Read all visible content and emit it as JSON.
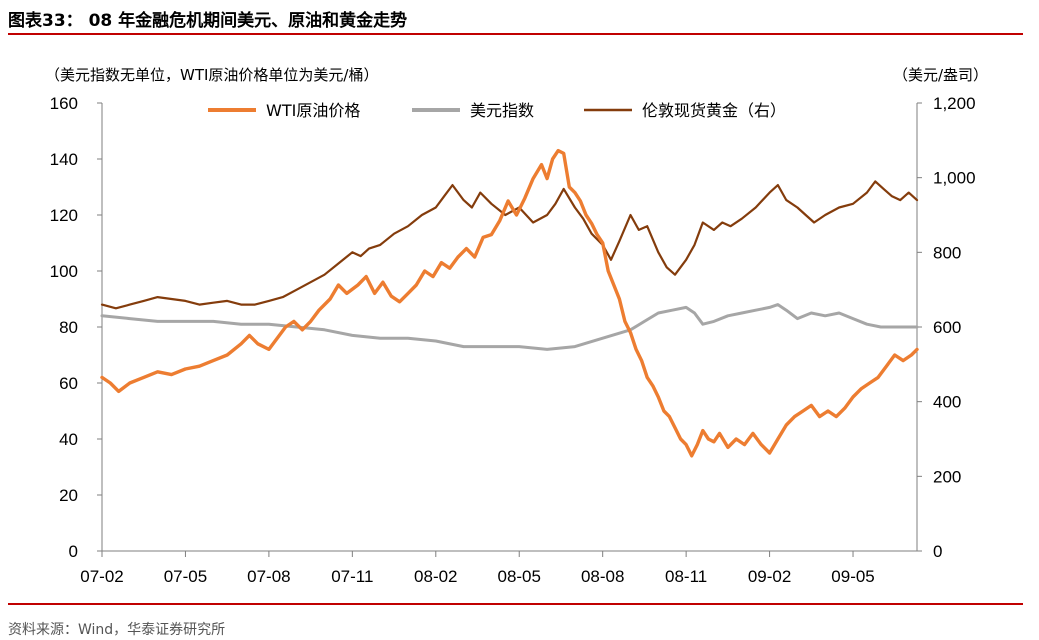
{
  "header": {
    "title": "图表33：  08 年金融危机期间美元、原油和黄金走势"
  },
  "footer": {
    "source": "资料来源：Wind，华泰证券研究所"
  },
  "chart_data": {
    "type": "line",
    "ylabel": "（美元指数无单位，WTI原油价格单位为美元/桶）",
    "y2label": "（美元/盎司）",
    "xlabel": "",
    "ylim": [
      0,
      160
    ],
    "y2lim": [
      0,
      1200
    ],
    "yticks": [
      "0",
      "20",
      "40",
      "60",
      "80",
      "100",
      "120",
      "140",
      "160"
    ],
    "y2ticks": [
      "0",
      "200",
      "400",
      "600",
      "800",
      "1,000",
      "1,200"
    ],
    "x_tick_labels": [
      "07-02",
      "07-05",
      "07-08",
      "07-11",
      "08-02",
      "08-05",
      "08-08",
      "08-11",
      "09-02",
      "09-05"
    ],
    "x_ticks_month_index": [
      1,
      4,
      7,
      10,
      13,
      16,
      19,
      22,
      25,
      28
    ],
    "x_range_month_index": [
      1,
      30.3
    ],
    "legend": {
      "position": "top",
      "entries": [
        "WTI原油价格",
        "美元指数",
        "伦敦现货黄金（右）"
      ]
    },
    "grid": false,
    "series": [
      {
        "name": "WTI原油价格",
        "axis": "left",
        "color": "#ed7d31",
        "points": [
          [
            1.0,
            62
          ],
          [
            1.3,
            60
          ],
          [
            1.6,
            57
          ],
          [
            2.0,
            60
          ],
          [
            2.5,
            62
          ],
          [
            3.0,
            64
          ],
          [
            3.5,
            63
          ],
          [
            4.0,
            65
          ],
          [
            4.5,
            66
          ],
          [
            5.0,
            68
          ],
          [
            5.5,
            70
          ],
          [
            6.0,
            74
          ],
          [
            6.3,
            77
          ],
          [
            6.6,
            74
          ],
          [
            7.0,
            72
          ],
          [
            7.3,
            76
          ],
          [
            7.6,
            80
          ],
          [
            7.9,
            82
          ],
          [
            8.2,
            79
          ],
          [
            8.5,
            82
          ],
          [
            8.8,
            86
          ],
          [
            9.2,
            90
          ],
          [
            9.5,
            95
          ],
          [
            9.8,
            92
          ],
          [
            10.2,
            95
          ],
          [
            10.5,
            98
          ],
          [
            10.8,
            92
          ],
          [
            11.1,
            96
          ],
          [
            11.4,
            91
          ],
          [
            11.7,
            89
          ],
          [
            12.0,
            92
          ],
          [
            12.3,
            95
          ],
          [
            12.6,
            100
          ],
          [
            12.9,
            98
          ],
          [
            13.2,
            103
          ],
          [
            13.5,
            101
          ],
          [
            13.8,
            105
          ],
          [
            14.1,
            108
          ],
          [
            14.4,
            105
          ],
          [
            14.7,
            112
          ],
          [
            15.0,
            113
          ],
          [
            15.3,
            118
          ],
          [
            15.6,
            125
          ],
          [
            15.9,
            120
          ],
          [
            16.2,
            126
          ],
          [
            16.5,
            133
          ],
          [
            16.8,
            138
          ],
          [
            17.0,
            133
          ],
          [
            17.2,
            140
          ],
          [
            17.4,
            143
          ],
          [
            17.6,
            142
          ],
          [
            17.8,
            130
          ],
          [
            18.0,
            128
          ],
          [
            18.2,
            125
          ],
          [
            18.4,
            120
          ],
          [
            18.6,
            117
          ],
          [
            18.8,
            113
          ],
          [
            19.0,
            110
          ],
          [
            19.2,
            100
          ],
          [
            19.4,
            95
          ],
          [
            19.6,
            90
          ],
          [
            19.8,
            82
          ],
          [
            20.0,
            78
          ],
          [
            20.2,
            72
          ],
          [
            20.4,
            68
          ],
          [
            20.6,
            62
          ],
          [
            20.8,
            59
          ],
          [
            21.0,
            55
          ],
          [
            21.2,
            50
          ],
          [
            21.4,
            48
          ],
          [
            21.6,
            44
          ],
          [
            21.8,
            40
          ],
          [
            22.0,
            38
          ],
          [
            22.2,
            34
          ],
          [
            22.4,
            38
          ],
          [
            22.6,
            43
          ],
          [
            22.8,
            40
          ],
          [
            23.0,
            39
          ],
          [
            23.2,
            42
          ],
          [
            23.5,
            37
          ],
          [
            23.8,
            40
          ],
          [
            24.1,
            38
          ],
          [
            24.4,
            42
          ],
          [
            24.7,
            38
          ],
          [
            25.0,
            35
          ],
          [
            25.3,
            40
          ],
          [
            25.6,
            45
          ],
          [
            25.9,
            48
          ],
          [
            26.2,
            50
          ],
          [
            26.5,
            52
          ],
          [
            26.8,
            48
          ],
          [
            27.1,
            50
          ],
          [
            27.4,
            48
          ],
          [
            27.7,
            51
          ],
          [
            28.0,
            55
          ],
          [
            28.3,
            58
          ],
          [
            28.6,
            60
          ],
          [
            28.9,
            62
          ],
          [
            29.2,
            66
          ],
          [
            29.5,
            70
          ],
          [
            29.8,
            68
          ],
          [
            30.1,
            70
          ],
          [
            30.3,
            72
          ]
        ]
      },
      {
        "name": "美元指数",
        "axis": "left",
        "color": "#a6a6a6",
        "points": [
          [
            1.0,
            84
          ],
          [
            2.0,
            83
          ],
          [
            3.0,
            82
          ],
          [
            4.0,
            82
          ],
          [
            5.0,
            82
          ],
          [
            6.0,
            81
          ],
          [
            7.0,
            81
          ],
          [
            8.0,
            80
          ],
          [
            9.0,
            79
          ],
          [
            10.0,
            77
          ],
          [
            11.0,
            76
          ],
          [
            12.0,
            76
          ],
          [
            13.0,
            75
          ],
          [
            14.0,
            73
          ],
          [
            15.0,
            73
          ],
          [
            16.0,
            73
          ],
          [
            17.0,
            72
          ],
          [
            18.0,
            73
          ],
          [
            19.0,
            76
          ],
          [
            20.0,
            79
          ],
          [
            20.5,
            82
          ],
          [
            21.0,
            85
          ],
          [
            21.5,
            86
          ],
          [
            22.0,
            87
          ],
          [
            22.3,
            85
          ],
          [
            22.6,
            81
          ],
          [
            23.0,
            82
          ],
          [
            23.5,
            84
          ],
          [
            24.0,
            85
          ],
          [
            24.5,
            86
          ],
          [
            25.0,
            87
          ],
          [
            25.3,
            88
          ],
          [
            25.6,
            86
          ],
          [
            26.0,
            83
          ],
          [
            26.5,
            85
          ],
          [
            27.0,
            84
          ],
          [
            27.5,
            85
          ],
          [
            28.0,
            83
          ],
          [
            28.5,
            81
          ],
          [
            29.0,
            80
          ],
          [
            29.5,
            80
          ],
          [
            30.0,
            80
          ],
          [
            30.3,
            80
          ]
        ]
      },
      {
        "name": "伦敦现货黄金（右）",
        "axis": "right",
        "color": "#843c0c",
        "points": [
          [
            1.0,
            660
          ],
          [
            1.5,
            650
          ],
          [
            2.0,
            660
          ],
          [
            2.5,
            670
          ],
          [
            3.0,
            680
          ],
          [
            3.5,
            675
          ],
          [
            4.0,
            670
          ],
          [
            4.5,
            660
          ],
          [
            5.0,
            665
          ],
          [
            5.5,
            670
          ],
          [
            6.0,
            660
          ],
          [
            6.5,
            660
          ],
          [
            7.0,
            670
          ],
          [
            7.5,
            680
          ],
          [
            8.0,
            700
          ],
          [
            8.5,
            720
          ],
          [
            9.0,
            740
          ],
          [
            9.5,
            770
          ],
          [
            10.0,
            800
          ],
          [
            10.3,
            790
          ],
          [
            10.6,
            810
          ],
          [
            11.0,
            820
          ],
          [
            11.5,
            850
          ],
          [
            12.0,
            870
          ],
          [
            12.5,
            900
          ],
          [
            13.0,
            920
          ],
          [
            13.3,
            950
          ],
          [
            13.6,
            980
          ],
          [
            14.0,
            940
          ],
          [
            14.3,
            920
          ],
          [
            14.6,
            960
          ],
          [
            15.0,
            930
          ],
          [
            15.5,
            900
          ],
          [
            16.0,
            920
          ],
          [
            16.5,
            880
          ],
          [
            17.0,
            900
          ],
          [
            17.3,
            930
          ],
          [
            17.6,
            970
          ],
          [
            18.0,
            920
          ],
          [
            18.3,
            890
          ],
          [
            18.6,
            850
          ],
          [
            19.0,
            820
          ],
          [
            19.3,
            780
          ],
          [
            19.6,
            830
          ],
          [
            20.0,
            900
          ],
          [
            20.3,
            860
          ],
          [
            20.6,
            870
          ],
          [
            21.0,
            800
          ],
          [
            21.3,
            760
          ],
          [
            21.6,
            740
          ],
          [
            22.0,
            780
          ],
          [
            22.3,
            820
          ],
          [
            22.6,
            880
          ],
          [
            23.0,
            860
          ],
          [
            23.3,
            880
          ],
          [
            23.6,
            870
          ],
          [
            24.0,
            890
          ],
          [
            24.5,
            920
          ],
          [
            25.0,
            960
          ],
          [
            25.3,
            980
          ],
          [
            25.6,
            940
          ],
          [
            26.0,
            920
          ],
          [
            26.3,
            900
          ],
          [
            26.6,
            880
          ],
          [
            27.0,
            900
          ],
          [
            27.5,
            920
          ],
          [
            28.0,
            930
          ],
          [
            28.5,
            960
          ],
          [
            28.8,
            990
          ],
          [
            29.1,
            970
          ],
          [
            29.4,
            950
          ],
          [
            29.7,
            940
          ],
          [
            30.0,
            960
          ],
          [
            30.3,
            940
          ]
        ]
      }
    ]
  }
}
